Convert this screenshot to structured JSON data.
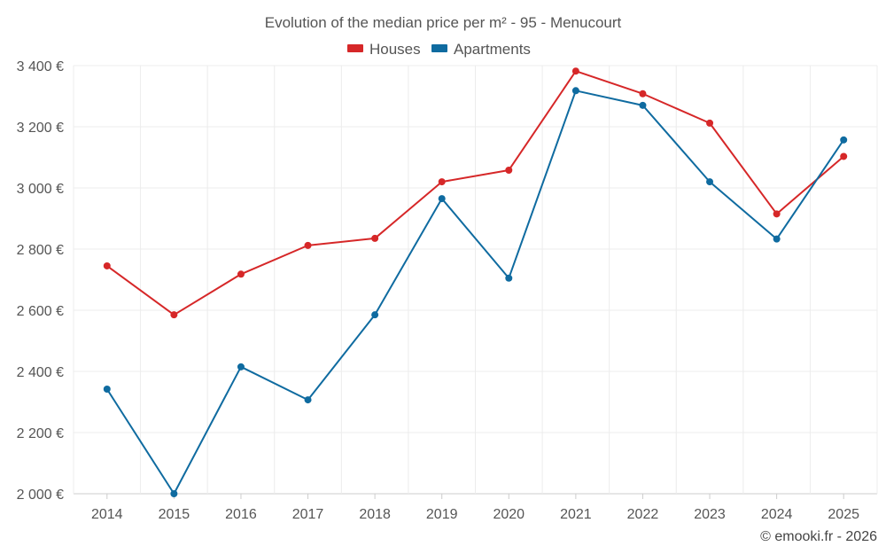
{
  "chart_data": {
    "type": "line",
    "title": "Evolution of the median price per m² - 95 - Menucourt",
    "categories": [
      "2014",
      "2015",
      "2016",
      "2017",
      "2018",
      "2019",
      "2020",
      "2021",
      "2022",
      "2023",
      "2024",
      "2025"
    ],
    "series": [
      {
        "name": "Houses",
        "color": "#d62728",
        "values": [
          2745,
          2585,
          2718,
          2812,
          2835,
          3020,
          3058,
          3382,
          3308,
          3212,
          2915,
          3103
        ]
      },
      {
        "name": "Apartments",
        "color": "#0f6ba0",
        "values": [
          2342,
          2000,
          2415,
          2307,
          2585,
          2965,
          2705,
          3318,
          3270,
          3020,
          2833,
          3157
        ]
      }
    ],
    "ylim": [
      2000,
      3400
    ],
    "yticks": [
      2000,
      2200,
      2400,
      2600,
      2800,
      3000,
      3200,
      3400
    ],
    "ytick_labels": [
      "2 000 €",
      "2 200 €",
      "2 400 €",
      "2 600 €",
      "2 800 €",
      "3 000 €",
      "3 200 €",
      "3 400 €"
    ],
    "xlabel": "",
    "ylabel": "",
    "grid": true,
    "legend_position": "top-center"
  },
  "credit": "© emooki.fr - 2026"
}
